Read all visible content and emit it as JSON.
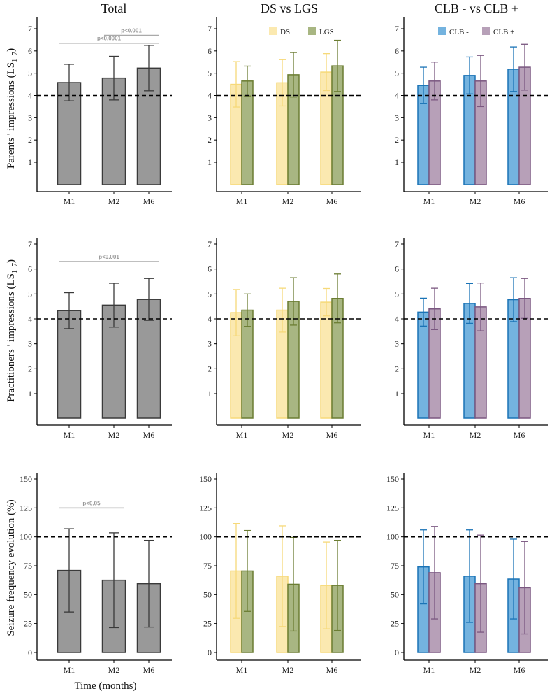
{
  "figure": {
    "column_titles": [
      "Total",
      "DS vs LGS",
      "CLB - vs CLB +"
    ],
    "row_ylabels": [
      "Parents ' impressions (LS",
      "Practitioners ' impressions (LS",
      "Seizure frequency evolution (%)"
    ],
    "ylabel_subscript": "1–7",
    "ylabel_close": ")",
    "xlabel": "Time (months)"
  },
  "colors": {
    "total_fill": "#999999",
    "total_stroke": "#3a3a3a",
    "ds_fill": "#fbe9b0",
    "ds_stroke": "#f6d979",
    "lgs_fill": "#a8b682",
    "lgs_stroke": "#6b7d32",
    "clbneg_fill": "#74b3df",
    "clbneg_stroke": "#1a73b6",
    "clbpos_fill": "#b7a0b8",
    "clbpos_stroke": "#7a5780",
    "sig": "#aaaaaa"
  },
  "chart_data": [
    {
      "type": "bar",
      "row": 0,
      "col": 0,
      "categories": [
        "M1",
        "M2",
        "M6"
      ],
      "ylim": [
        0,
        7
      ],
      "yticks": [
        "1",
        "2",
        "3",
        "4",
        "5",
        "6",
        "7"
      ],
      "reference_line": 4,
      "series": [
        {
          "key": "total",
          "values": [
            4.58,
            4.78,
            5.23
          ],
          "errors": [
            0.82,
            0.98,
            1.02
          ]
        }
      ],
      "annotations": [
        {
          "text": "p<0.001",
          "from": 1,
          "to": 2,
          "level": 6.7
        },
        {
          "text": "p<0.0001",
          "from": 0,
          "to": 2,
          "level": 6.35
        }
      ]
    },
    {
      "type": "bar",
      "row": 0,
      "col": 1,
      "categories": [
        "M1",
        "M2",
        "M6"
      ],
      "ylim": [
        0,
        7
      ],
      "yticks": [
        "1",
        "2",
        "3",
        "4",
        "5",
        "6",
        "7"
      ],
      "reference_line": 4,
      "legend": [
        "DS",
        "LGS"
      ],
      "series": [
        {
          "name": "DS",
          "key": "ds",
          "values": [
            4.5,
            4.57,
            5.05
          ],
          "errors": [
            1.02,
            1.04,
            0.83
          ]
        },
        {
          "name": "LGS",
          "key": "lgs",
          "values": [
            4.65,
            4.93,
            5.33
          ],
          "errors": [
            0.67,
            1.0,
            1.15
          ]
        }
      ]
    },
    {
      "type": "bar",
      "row": 0,
      "col": 2,
      "categories": [
        "M1",
        "M2",
        "M6"
      ],
      "ylim": [
        0,
        7
      ],
      "yticks": [
        "1",
        "2",
        "3",
        "4",
        "5",
        "6",
        "7"
      ],
      "reference_line": 4,
      "legend": [
        "CLB -",
        "CLB +"
      ],
      "series": [
        {
          "name": "CLB -",
          "key": "clbneg",
          "values": [
            4.45,
            4.9,
            5.18
          ],
          "errors": [
            0.82,
            0.83,
            1.0
          ]
        },
        {
          "name": "CLB +",
          "key": "clbpos",
          "values": [
            4.65,
            4.65,
            5.27
          ],
          "errors": [
            0.85,
            1.15,
            1.03
          ]
        }
      ]
    },
    {
      "type": "bar",
      "row": 1,
      "col": 0,
      "categories": [
        "M1",
        "M2",
        "M6"
      ],
      "ylim": [
        0,
        7
      ],
      "yticks": [
        "1",
        "2",
        "3",
        "4",
        "5",
        "6",
        "7"
      ],
      "reference_line": 4,
      "series": [
        {
          "key": "total",
          "values": [
            4.33,
            4.55,
            4.78
          ],
          "errors": [
            0.72,
            0.88,
            0.84
          ]
        }
      ],
      "annotations": [
        {
          "text": "p<0.001",
          "from": 0,
          "to": 2,
          "level": 6.3
        }
      ]
    },
    {
      "type": "bar",
      "row": 1,
      "col": 1,
      "categories": [
        "M1",
        "M2",
        "M6"
      ],
      "ylim": [
        0,
        7
      ],
      "yticks": [
        "1",
        "2",
        "3",
        "4",
        "5",
        "6",
        "7"
      ],
      "reference_line": 4,
      "series": [
        {
          "name": "DS",
          "key": "ds",
          "values": [
            4.25,
            4.35,
            4.67
          ],
          "errors": [
            0.93,
            0.88,
            0.55
          ]
        },
        {
          "name": "LGS",
          "key": "lgs",
          "values": [
            4.35,
            4.7,
            4.82
          ],
          "errors": [
            0.65,
            0.95,
            0.98
          ]
        }
      ]
    },
    {
      "type": "bar",
      "row": 1,
      "col": 2,
      "categories": [
        "M1",
        "M2",
        "M6"
      ],
      "ylim": [
        0,
        7
      ],
      "yticks": [
        "1",
        "2",
        "3",
        "4",
        "5",
        "6",
        "7"
      ],
      "reference_line": 4,
      "series": [
        {
          "name": "CLB -",
          "key": "clbneg",
          "values": [
            4.27,
            4.62,
            4.77
          ],
          "errors": [
            0.56,
            0.8,
            0.88
          ]
        },
        {
          "name": "CLB +",
          "key": "clbpos",
          "values": [
            4.4,
            4.48,
            4.82
          ],
          "errors": [
            0.83,
            0.96,
            0.8
          ]
        }
      ]
    },
    {
      "type": "bar",
      "row": 2,
      "col": 0,
      "categories": [
        "M1",
        "M2",
        "M6"
      ],
      "ylim": [
        0,
        155
      ],
      "yticks": [
        "0",
        "25",
        "50",
        "75",
        "100",
        "125",
        "150"
      ],
      "reference_line": 100,
      "series": [
        {
          "key": "total",
          "values": [
            71,
            62.5,
            59.5
          ],
          "errors": [
            36,
            41,
            37.5
          ]
        }
      ],
      "annotations": [
        {
          "text": "p<0.05",
          "from": 0,
          "to": 1,
          "level": 125
        }
      ]
    },
    {
      "type": "bar",
      "row": 2,
      "col": 1,
      "categories": [
        "M1",
        "M2",
        "M6"
      ],
      "ylim": [
        0,
        155
      ],
      "yticks": [
        "0",
        "25",
        "50",
        "75",
        "100",
        "125",
        "150"
      ],
      "reference_line": 100,
      "series": [
        {
          "name": "DS",
          "key": "ds",
          "values": [
            70.5,
            66,
            58
          ],
          "errors": [
            41,
            43.5,
            37.5
          ]
        },
        {
          "name": "LGS",
          "key": "lgs",
          "values": [
            70.5,
            59,
            58
          ],
          "errors": [
            35,
            40.5,
            39
          ]
        }
      ]
    },
    {
      "type": "bar",
      "row": 2,
      "col": 2,
      "categories": [
        "M1",
        "M2",
        "M6"
      ],
      "ylim": [
        0,
        155
      ],
      "yticks": [
        "0",
        "25",
        "50",
        "75",
        "100",
        "125",
        "150"
      ],
      "reference_line": 100,
      "series": [
        {
          "name": "CLB -",
          "key": "clbneg",
          "values": [
            74,
            66,
            63.5
          ],
          "errors": [
            32,
            40,
            34.5
          ]
        },
        {
          "name": "CLB +",
          "key": "clbpos",
          "values": [
            69,
            59.5,
            56
          ],
          "errors": [
            40,
            42,
            40
          ]
        }
      ]
    }
  ]
}
